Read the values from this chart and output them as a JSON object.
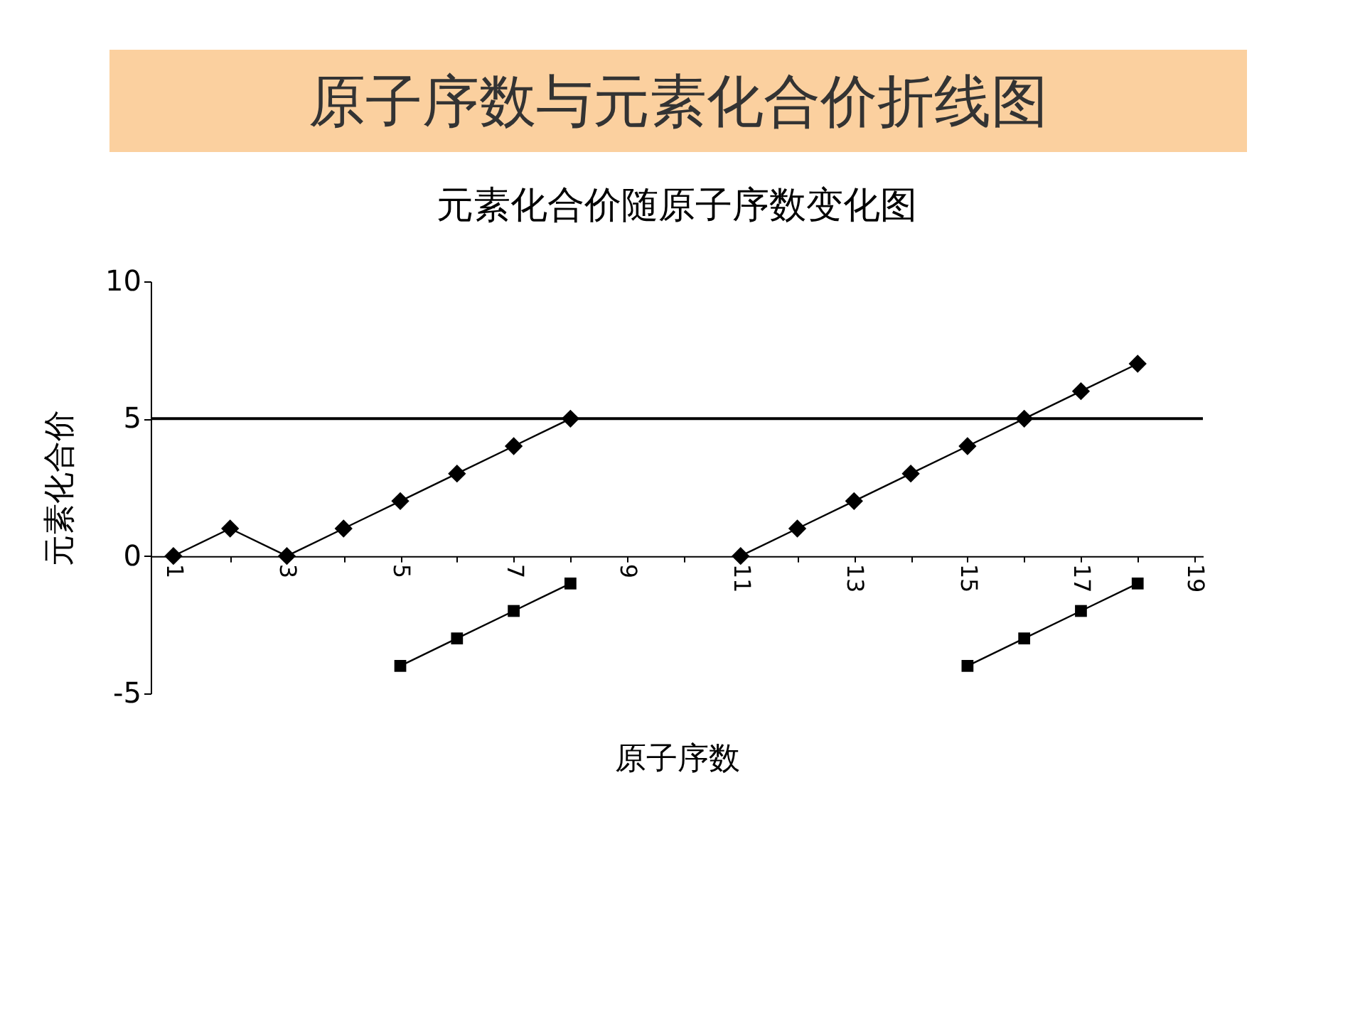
{
  "chart_data": {
    "type": "line",
    "title": "原子序数与元素化合价折线图",
    "subtitle": "元素化合价随原子序数变化图",
    "xlabel": "原子序数",
    "ylabel": "元素化合价",
    "series": [
      {
        "color": "#000000",
        "marker": "diamond",
        "x": [
          1,
          2,
          3,
          4,
          5,
          6,
          7,
          8,
          9,
          10,
          11,
          12,
          13,
          14,
          15,
          16,
          17,
          18
        ],
        "values": [
          0,
          1,
          0,
          1,
          2,
          3,
          4,
          5,
          null,
          null,
          0,
          1,
          2,
          3,
          4,
          5,
          6,
          7
        ]
      },
      {
        "color": "#000000",
        "marker": "square",
        "x": [
          5,
          6,
          7,
          8,
          9,
          10,
          11,
          12,
          13,
          14,
          15,
          16,
          17,
          18
        ],
        "values": [
          -4,
          -3,
          -2,
          -1,
          null,
          null,
          null,
          null,
          null,
          null,
          -4,
          -3,
          -2,
          -1
        ]
      }
    ],
    "xlim": [
      0.6,
      19.15
    ],
    "xticks": [
      1,
      {
        "value": 2,
        "label": null
      },
      3,
      {
        "value": 4,
        "label": null
      },
      5,
      {
        "value": 6,
        "label": null
      },
      7,
      {
        "value": 8,
        "label": null
      },
      9,
      {
        "value": 10,
        "label": null
      },
      11,
      {
        "value": 12,
        "label": null
      },
      13,
      {
        "value": 14,
        "label": null
      },
      15,
      {
        "value": 16,
        "label": null
      },
      17,
      {
        "value": 18,
        "label": null
      },
      19
    ],
    "ylim": [
      -5,
      10
    ],
    "yticks": [
      -5,
      0,
      5,
      10
    ],
    "ref_lines": [
      {
        "axis": "y",
        "value": 5,
        "color": "#000000"
      }
    ],
    "grid": false,
    "line_style": "solid"
  }
}
